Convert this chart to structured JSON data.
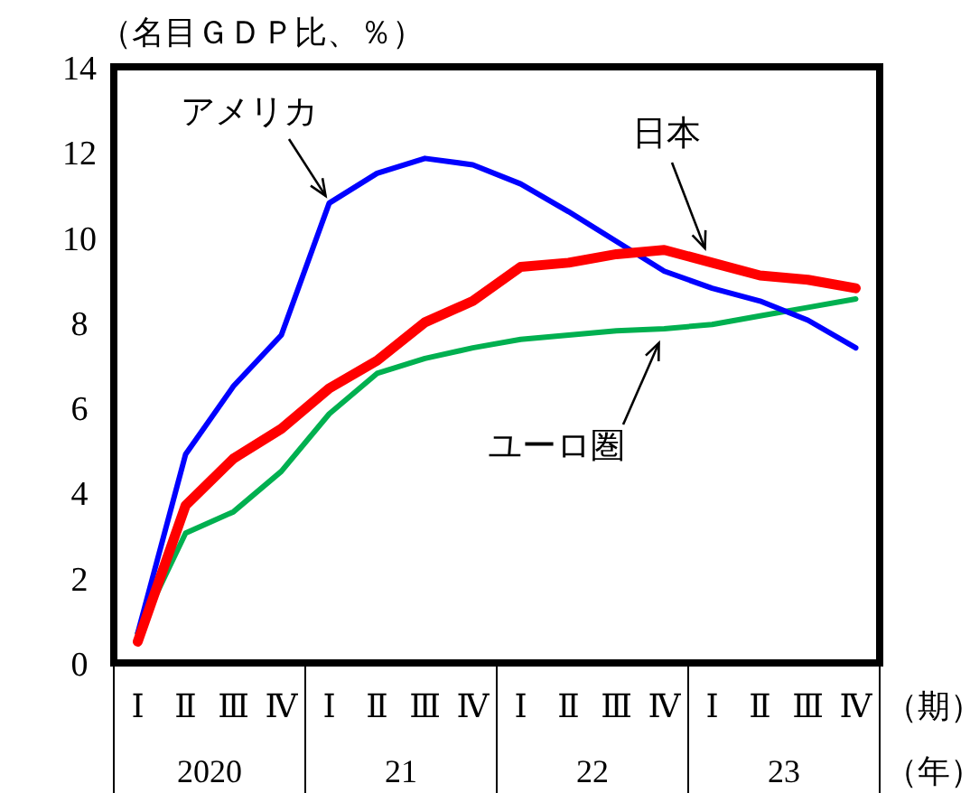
{
  "chart_data": {
    "type": "line",
    "ylabel": "（名目ＧＤＰ比、％）",
    "categories": [
      "Ⅰ",
      "Ⅱ",
      "Ⅲ",
      "Ⅳ",
      "Ⅰ",
      "Ⅱ",
      "Ⅲ",
      "Ⅳ",
      "Ⅰ",
      "Ⅱ",
      "Ⅲ",
      "Ⅳ",
      "Ⅰ",
      "Ⅱ",
      "Ⅲ",
      "Ⅳ"
    ],
    "series": [
      {
        "name": "アメリカ",
        "color": "#0000ff",
        "values": [
          0.7,
          4.9,
          6.5,
          7.7,
          10.8,
          11.5,
          11.85,
          11.7,
          11.25,
          10.6,
          9.9,
          9.2,
          8.8,
          8.5,
          8.05,
          7.4
        ]
      },
      {
        "name": "日本",
        "color": "#ff0000",
        "values": [
          0.5,
          3.7,
          4.8,
          5.5,
          6.45,
          7.1,
          8.0,
          8.5,
          9.3,
          9.4,
          9.6,
          9.7,
          9.4,
          9.1,
          9.0,
          8.8
        ]
      },
      {
        "name": "ユーロ圏",
        "color": "#00b050",
        "values": [
          0.7,
          3.05,
          3.55,
          4.5,
          5.85,
          6.8,
          7.15,
          7.4,
          7.6,
          7.7,
          7.8,
          7.85,
          7.95,
          8.15,
          8.35,
          8.55
        ]
      }
    ],
    "ylim": [
      0,
      14
    ],
    "yticks": [
      0,
      2,
      4,
      6,
      8,
      10,
      12,
      14
    ],
    "annotations": [
      "2020",
      "21",
      "22",
      "23",
      "（期）",
      "（年）"
    ]
  }
}
